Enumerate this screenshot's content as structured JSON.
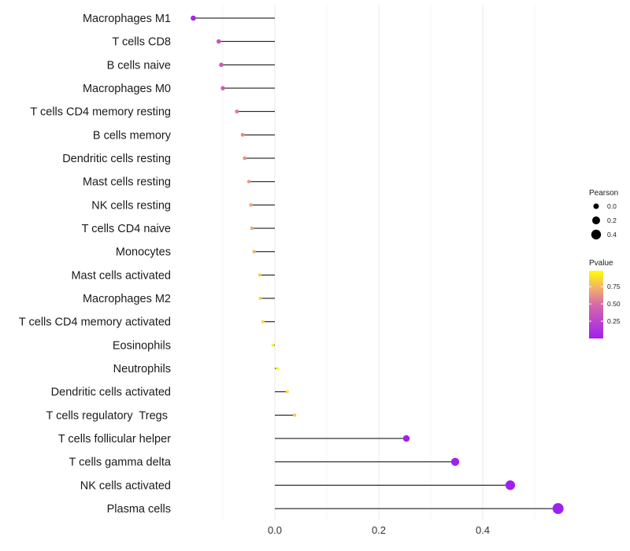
{
  "chart_data": {
    "type": "lollipop",
    "title": "",
    "xlabel": "",
    "ylabel": "",
    "xlim": [
      -0.2,
      0.55
    ],
    "x_ticks": [
      0.0,
      0.2,
      0.4
    ],
    "x_tick_labels": [
      "0.0",
      "0.2",
      "0.4"
    ],
    "baseline": 0,
    "grid": true,
    "categories": [
      "Macrophages M1",
      "T cells CD8",
      "B cells naive",
      "Macrophages M0",
      "T cells CD4 memory resting",
      "B cells memory",
      "Dendritic cells resting",
      "Mast cells resting",
      "NK cells resting",
      "T cells CD4 naive",
      "Monocytes",
      "Mast cells activated",
      "Macrophages M2",
      "T cells CD4 memory activated",
      "Eosinophils",
      "Neutrophils",
      "Dendritic cells activated",
      "T cells regulatory  Tregs ",
      "T cells follicular helper",
      "T cells gamma delta",
      "NK cells activated",
      "Plasma cells"
    ],
    "values": [
      -0.157,
      -0.108,
      -0.103,
      -0.1,
      -0.073,
      -0.062,
      -0.058,
      -0.05,
      -0.046,
      -0.044,
      -0.04,
      -0.029,
      -0.028,
      -0.023,
      -0.004,
      0.005,
      0.024,
      0.038,
      0.253,
      0.347,
      0.453,
      0.545
    ],
    "pvalues": [
      0.03,
      0.35,
      0.38,
      0.4,
      0.55,
      0.6,
      0.62,
      0.66,
      0.69,
      0.7,
      0.73,
      0.82,
      0.83,
      0.86,
      0.97,
      0.98,
      0.88,
      0.8,
      1e-05,
      1e-06,
      1e-07,
      1e-08
    ],
    "legend_size": {
      "title": "Pearson",
      "entries": [
        {
          "label": "0.0",
          "value": 0.0
        },
        {
          "label": "0.2",
          "value": 0.2
        },
        {
          "label": "0.4",
          "value": 0.4
        }
      ]
    },
    "legend_color": {
      "title": "Pvalue",
      "ticks": [
        {
          "label": "0.75",
          "value": 0.75
        },
        {
          "label": "0.50",
          "value": 0.5
        },
        {
          "label": "0.25",
          "value": 0.25
        }
      ],
      "range": [
        0,
        0.98
      ],
      "low_color": "#a020f0",
      "high_color": "#ffff00"
    },
    "legend_position": "right"
  },
  "colors": {
    "background": "#ffffff",
    "grid": "#ebebeb",
    "segment": "#000000",
    "point_low": "#a020f0",
    "point_high": "#ffff00"
  }
}
